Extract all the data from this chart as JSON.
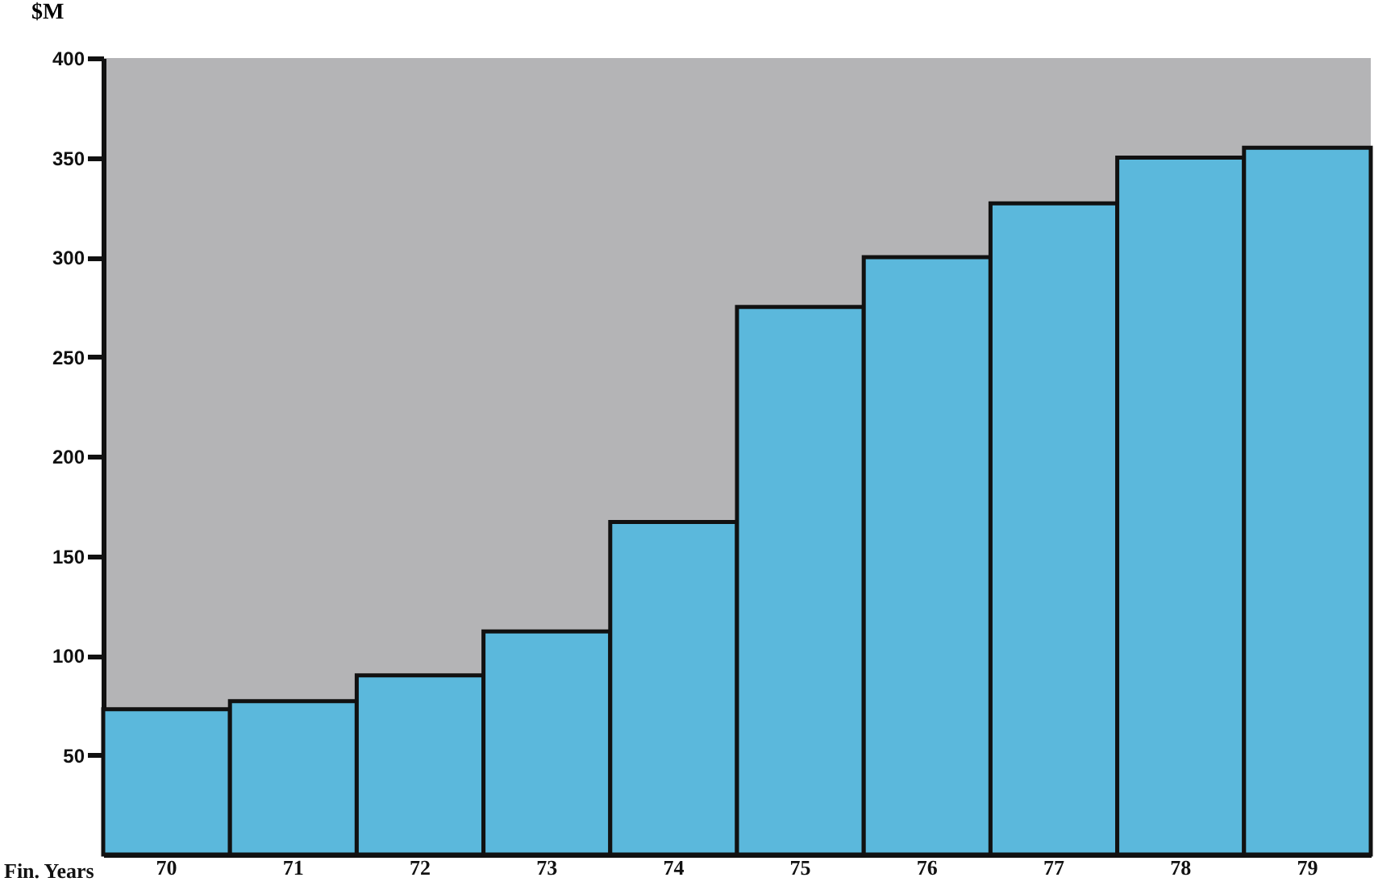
{
  "chart_data": {
    "type": "bar",
    "xlabel": "Fin. Years",
    "ylabel": "$M",
    "categories": [
      "70",
      "71",
      "72",
      "73",
      "74",
      "75",
      "76",
      "77",
      "78",
      "79"
    ],
    "values": [
      73,
      77,
      90,
      112,
      167,
      275,
      300,
      327,
      350,
      355
    ],
    "color": "#5bb8dc",
    "ylim": [
      0,
      400
    ],
    "yticks": [
      50,
      100,
      150,
      200,
      250,
      300,
      350,
      400
    ],
    "grid": false
  }
}
